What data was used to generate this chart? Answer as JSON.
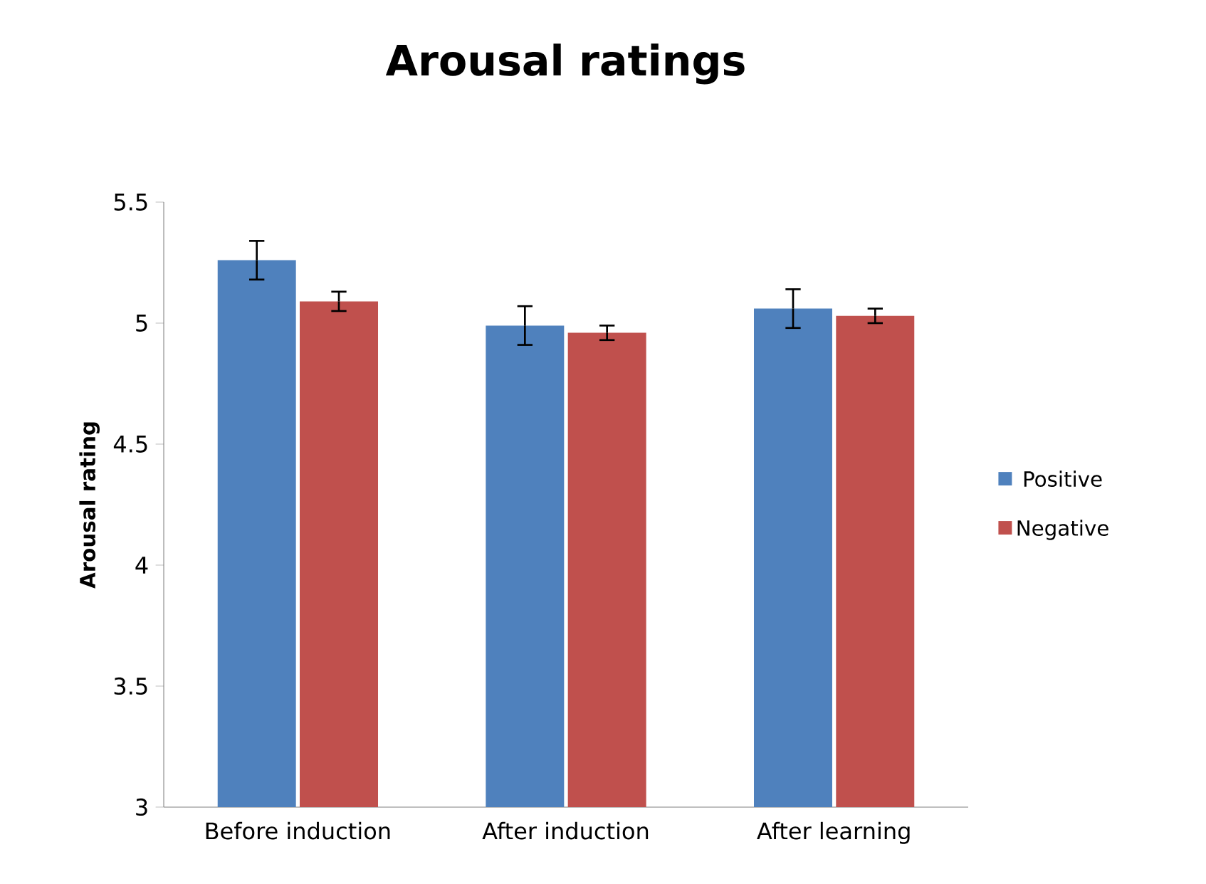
{
  "chart_data": {
    "type": "bar",
    "title": "Arousal ratings",
    "ylabel": "Arousal rating",
    "categories": [
      "Before induction",
      "After induction",
      "After learning"
    ],
    "series": [
      {
        "name": "Positive",
        "color": "#4f81bd",
        "values": [
          5.26,
          4.99,
          5.06
        ],
        "errors": [
          0.08,
          0.08,
          0.08
        ]
      },
      {
        "name": "Negative",
        "color": "#c0504d",
        "values": [
          5.09,
          4.96,
          5.03
        ],
        "errors": [
          0.04,
          0.03,
          0.03
        ]
      }
    ],
    "ylim": [
      3,
      5.5
    ],
    "yticks": [
      3,
      3.5,
      4,
      4.5,
      5,
      5.5
    ],
    "grid": false,
    "legend": "right"
  }
}
